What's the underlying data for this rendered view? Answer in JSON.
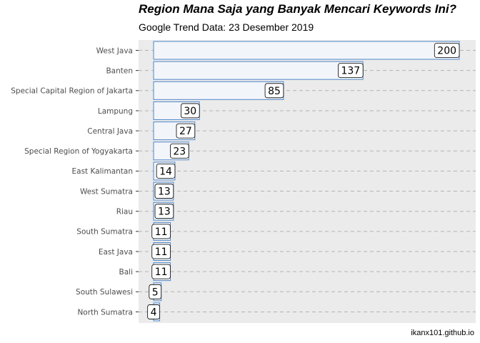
{
  "chart_data": {
    "type": "bar",
    "orientation": "horizontal",
    "title": "Region Mana Saja yang Banyak Mencari Keywords Ini?",
    "subtitle": "Google Trend Data: 23 Desember 2019",
    "caption": "ikanx101.github.io",
    "xlabel": "",
    "ylabel": "",
    "xlim": [
      0,
      210
    ],
    "grid": "dashed horizontal",
    "categories": [
      "West Java",
      "Banten",
      "Special Capital Region of Jakarta",
      "Lampung",
      "Central Java",
      "Special Region of Yogyakarta",
      "East Kalimantan",
      "West Sumatra",
      "Riau",
      "South Sumatra",
      "East Java",
      "Bali",
      "South Sulawesi",
      "North Sumatra"
    ],
    "values": [
      200,
      137,
      85,
      30,
      27,
      23,
      14,
      13,
      13,
      11,
      11,
      11,
      5,
      4
    ],
    "colors": {
      "panel": "#ebebeb",
      "bar_fill": "#f2f5fa",
      "bar_stroke": "#4f86c6",
      "grid": "#b3b3b3",
      "label_box": "#ffffff",
      "label_border": "#000000"
    }
  }
}
